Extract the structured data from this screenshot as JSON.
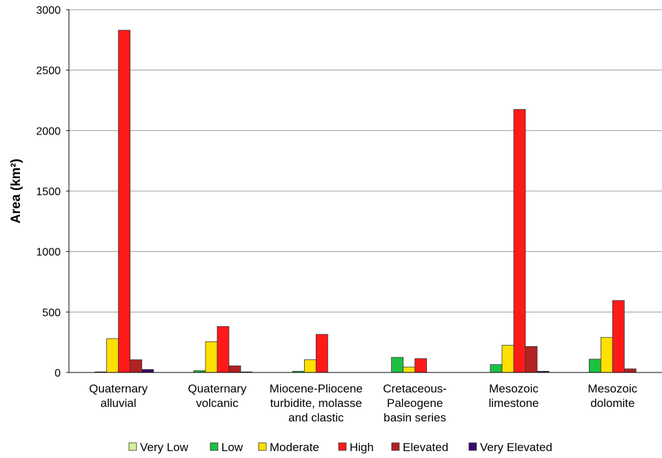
{
  "chart_data": {
    "type": "bar",
    "categories": [
      [
        "Quaternary",
        "alluvial"
      ],
      [
        "Quaternary",
        "volcanic"
      ],
      [
        "Miocene-Pliocene",
        "turbidite, molasse",
        "and clastic"
      ],
      [
        "Cretaceous-",
        "Paleogene",
        "basin series"
      ],
      [
        "Mesozoic",
        "limestone"
      ],
      [
        "Mesozoic",
        "dolomite"
      ]
    ],
    "series": [
      {
        "name": "Very Low",
        "color": "#d4f29a",
        "values": [
          0,
          0,
          0,
          0,
          0,
          0
        ]
      },
      {
        "name": "Low",
        "color": "#1dc142",
        "values": [
          5,
          15,
          10,
          125,
          65,
          110
        ]
      },
      {
        "name": "Moderate",
        "color": "#ffe000",
        "values": [
          280,
          255,
          105,
          45,
          225,
          290
        ]
      },
      {
        "name": "High",
        "color": "#ff1a1a",
        "values": [
          2830,
          380,
          315,
          115,
          2175,
          595
        ]
      },
      {
        "name": "Elevated",
        "color": "#b22222",
        "values": [
          105,
          55,
          0,
          0,
          215,
          30
        ]
      },
      {
        "name": "Very Elevated",
        "color": "#3a0a6e",
        "values": [
          25,
          5,
          0,
          0,
          10,
          0
        ]
      }
    ],
    "ylabel": "Area (km²)",
    "ylim": [
      0,
      3000
    ],
    "yticks": [
      "0",
      "500",
      "1000",
      "1500",
      "2000",
      "2500",
      "3000"
    ],
    "grid": true,
    "legend_position": "bottom"
  }
}
